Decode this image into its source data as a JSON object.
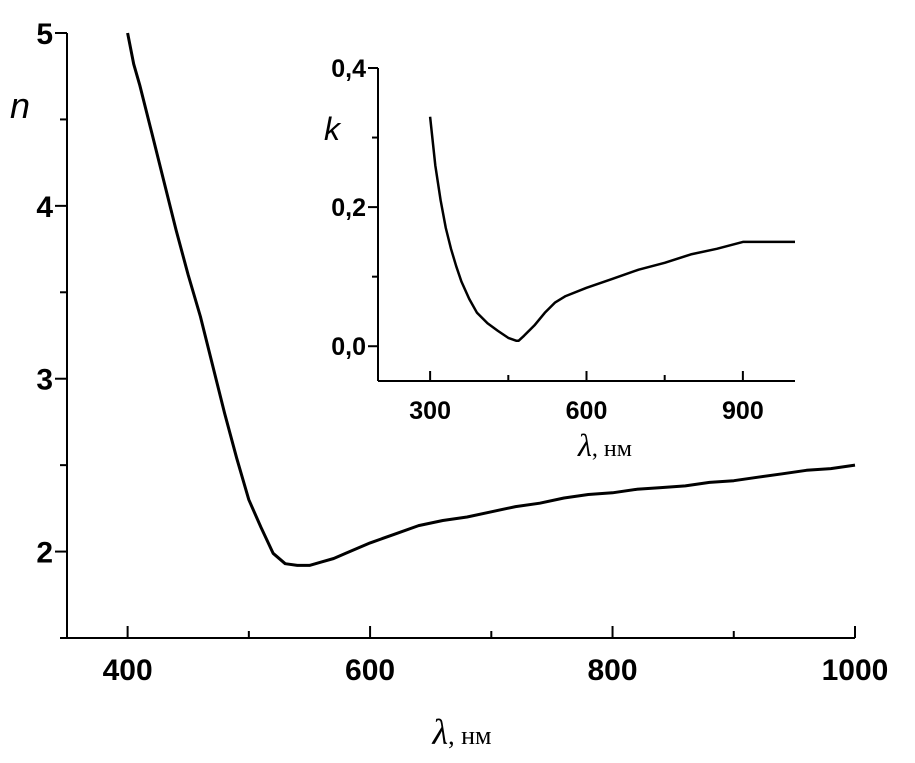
{
  "chart_data": [
    {
      "type": "line",
      "panel": "main",
      "xlabel_symbol": "λ",
      "xlabel_unit": ", нм",
      "ylabel": "n",
      "xlim": [
        350,
        1000
      ],
      "ylim": [
        1.5,
        5.0
      ],
      "x_ticks": [
        400,
        600,
        800,
        1000
      ],
      "x_tick_labels": [
        "400",
        "600",
        "800",
        "1000"
      ],
      "y_ticks": [
        2,
        3,
        4,
        5
      ],
      "y_tick_labels": [
        "2",
        "3",
        "4",
        "5"
      ],
      "grid": false,
      "series": [
        {
          "x": [
            400,
            405,
            410,
            420,
            430,
            440,
            450,
            460,
            470,
            480,
            490,
            500,
            510,
            520,
            530,
            540,
            550,
            560,
            570,
            580,
            600,
            620,
            640,
            660,
            680,
            700,
            720,
            740,
            760,
            780,
            800,
            820,
            840,
            860,
            880,
            900,
            920,
            940,
            960,
            980,
            1000
          ],
          "y": [
            5.0,
            4.82,
            4.7,
            4.42,
            4.14,
            3.86,
            3.6,
            3.36,
            3.08,
            2.8,
            2.54,
            2.3,
            2.14,
            1.99,
            1.93,
            1.92,
            1.92,
            1.94,
            1.96,
            1.99,
            2.05,
            2.1,
            2.15,
            2.18,
            2.2,
            2.23,
            2.26,
            2.28,
            2.31,
            2.33,
            2.34,
            2.36,
            2.37,
            2.38,
            2.4,
            2.41,
            2.43,
            2.45,
            2.47,
            2.48,
            2.5
          ]
        }
      ]
    },
    {
      "type": "line",
      "panel": "inset",
      "xlabel_symbol": "λ",
      "xlabel_unit": ", нм",
      "ylabel": "k",
      "xlim": [
        200,
        1000
      ],
      "ylim": [
        -0.05,
        0.4
      ],
      "x_ticks": [
        300,
        600,
        900
      ],
      "x_tick_labels": [
        "300",
        "600",
        "900"
      ],
      "y_ticks": [
        0.0,
        0.2,
        0.4
      ],
      "y_tick_labels": [
        "0,0",
        "0,2",
        "0,4"
      ],
      "grid": false,
      "series": [
        {
          "x": [
            300,
            310,
            320,
            330,
            340,
            350,
            360,
            375,
            390,
            410,
            430,
            450,
            465,
            470,
            480,
            500,
            520,
            540,
            560,
            600,
            650,
            700,
            750,
            800,
            850,
            900,
            950,
            1000
          ],
          "y": [
            0.33,
            0.26,
            0.21,
            0.17,
            0.14,
            0.115,
            0.093,
            0.068,
            0.048,
            0.033,
            0.022,
            0.012,
            0.008,
            0.008,
            0.015,
            0.03,
            0.048,
            0.063,
            0.072,
            0.084,
            0.097,
            0.11,
            0.12,
            0.132,
            0.14,
            0.15,
            0.15,
            0.15
          ]
        }
      ]
    }
  ]
}
